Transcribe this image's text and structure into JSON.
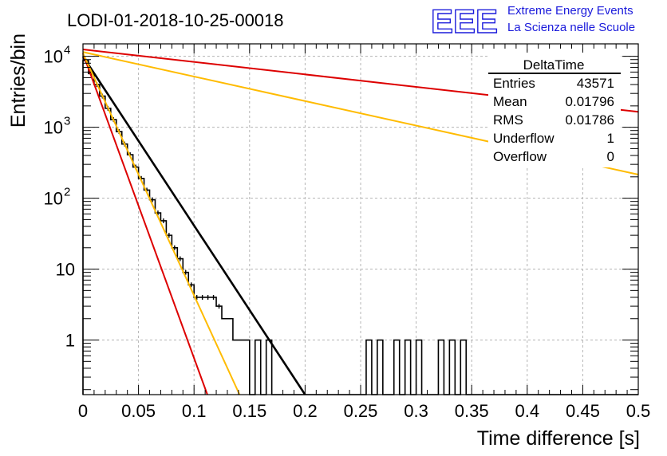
{
  "title": "LODI-01-2018-10-25-00018",
  "logo": {
    "mark": "EEE",
    "line1": "Extreme Energy Events",
    "line2": "La Scienza nelle Scuole"
  },
  "stats": {
    "name": "DeltaTime",
    "rows": [
      {
        "label": "Entries",
        "value": "43571"
      },
      {
        "label": "Mean",
        "value": "0.01796"
      },
      {
        "label": "RMS",
        "value": "0.01786"
      },
      {
        "label": "Underflow",
        "value": "1"
      },
      {
        "label": "Overflow",
        "value": "0"
      }
    ]
  },
  "chart_data": {
    "type": "histogram",
    "title": "LODI-01-2018-10-25-00018",
    "xlabel": "Time difference [s]",
    "ylabel": "Entries/bin",
    "xlim": [
      0,
      0.5
    ],
    "ylim": [
      0.17,
      15000
    ],
    "yscale": "log",
    "grid": true,
    "legend": "top-right",
    "xticks": [
      "0",
      "0.05",
      "0.1",
      "0.15",
      "0.2",
      "0.25",
      "0.3",
      "0.35",
      "0.4",
      "0.45",
      "0.5"
    ],
    "yticks": [
      {
        "value": 1,
        "label": "1"
      },
      {
        "value": 10,
        "label": "10"
      },
      {
        "value": 100,
        "label": "10",
        "exp": "2"
      },
      {
        "value": 1000,
        "label": "10",
        "exp": "3"
      },
      {
        "value": 10000,
        "label": "10",
        "exp": "4"
      }
    ],
    "histogram": {
      "bin_width": 0.005,
      "bins_from": 0,
      "counts": [
        8700,
        5700,
        4000,
        2750,
        1850,
        1280,
        870,
        580,
        410,
        275,
        190,
        130,
        95,
        62,
        48,
        30,
        20,
        14,
        9,
        6,
        4,
        4,
        4,
        4,
        3,
        2,
        2,
        1,
        1,
        1,
        0,
        1,
        0,
        1,
        0,
        0,
        0,
        0,
        0,
        0,
        0,
        0,
        0,
        0,
        0,
        0,
        0,
        0,
        0,
        0,
        0,
        1,
        0,
        1,
        0,
        0,
        1,
        0,
        1,
        0,
        1,
        0,
        0,
        0,
        1,
        0,
        1,
        0,
        1,
        0,
        0,
        0,
        0,
        0,
        0,
        0,
        0,
        0,
        0,
        0,
        0,
        0,
        0,
        0,
        0,
        0,
        0,
        0,
        0,
        0,
        0,
        0,
        0,
        0,
        0,
        0,
        0,
        0,
        0,
        0
      ]
    },
    "series": [
      {
        "points": [
          [
            0,
            10000
          ],
          [
            0.2,
            0.17
          ]
        ],
        "color": "#000000"
      },
      {
        "points": [
          [
            0,
            12500
          ],
          [
            0.5,
            1650
          ]
        ],
        "color": "#dd0000"
      },
      {
        "points": [
          [
            0,
            11500
          ],
          [
            0.5,
            215
          ]
        ],
        "color": "#ffbb00"
      },
      {
        "points": [
          [
            0,
            11000
          ],
          [
            0.112,
            0.17
          ]
        ],
        "color": "#dd0000"
      },
      {
        "points": [
          [
            0,
            11000
          ],
          [
            0.141,
            0.17
          ]
        ],
        "color": "#ffbb00"
      }
    ]
  }
}
